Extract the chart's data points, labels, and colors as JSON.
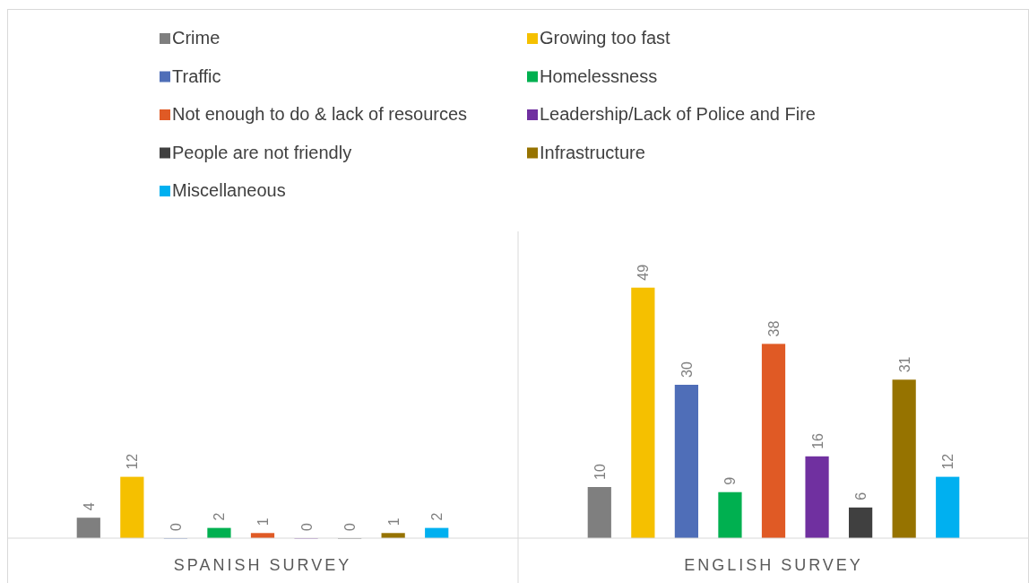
{
  "chart_data": {
    "type": "bar",
    "categories": [
      "SPANISH SURVEY",
      "ENGLISH SURVEY"
    ],
    "series": [
      {
        "name": "Crime",
        "color": "#7f7f7f",
        "values": [
          4,
          10
        ]
      },
      {
        "name": "Growing too fast",
        "color": "#f5c000",
        "values": [
          12,
          49
        ]
      },
      {
        "name": "Traffic",
        "color": "#4f6eb8",
        "values": [
          0,
          30
        ]
      },
      {
        "name": "Homelessness",
        "color": "#00b050",
        "values": [
          2,
          9
        ]
      },
      {
        "name": "Not enough to do & lack of resources",
        "color": "#e05a25",
        "values": [
          1,
          38
        ]
      },
      {
        "name": "Leadership/Lack of Police and Fire",
        "color": "#7030a0",
        "values": [
          0,
          16
        ]
      },
      {
        "name": "People are not friendly",
        "color": "#404040",
        "values": [
          0,
          6
        ]
      },
      {
        "name": "Infrastructure",
        "color": "#967300",
        "values": [
          1,
          31
        ]
      },
      {
        "name": "Miscellaneous",
        "color": "#00b0f0",
        "values": [
          2,
          12
        ]
      }
    ],
    "ylim": [
      0,
      60
    ],
    "data_labels": true,
    "legend": "top",
    "tick_labels": "x",
    "grid": false
  }
}
